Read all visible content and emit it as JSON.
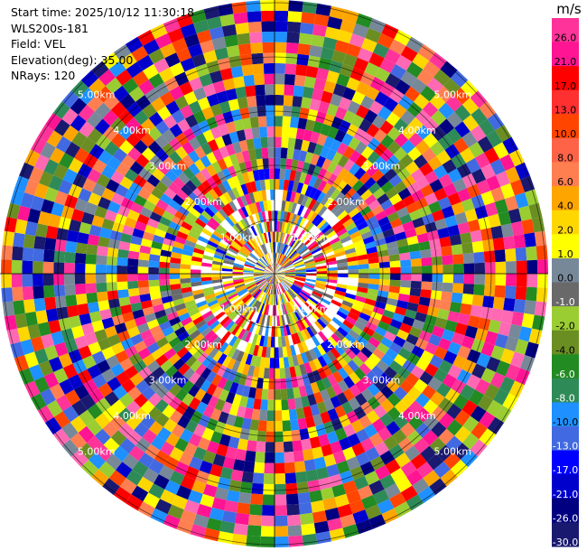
{
  "header": {
    "start_time": "Start time: 2025/10/12 11:30:18",
    "instrument": "WLS200s-181",
    "field": "Field: VEL",
    "elevation": "Elevation(deg): 35.00",
    "nrays": "NRays: 120"
  },
  "chart_data": {
    "type": "heatmap",
    "projection": "polar-ppi",
    "rays": 120,
    "range_labels": [
      "1.00km",
      "2.00km",
      "3.00km",
      "4.00km",
      "5.00km"
    ],
    "colorbar": {
      "unit": "m/s",
      "ticks": [
        "26.0",
        "21.0",
        "17.0",
        "13.0",
        "10.0",
        "8.0",
        "6.0",
        "4.0",
        "2.0",
        "1.0",
        "0.0",
        "-1.0",
        "-2.0",
        "-4.0",
        "-6.0",
        "-8.0",
        "-10.0",
        "-13.0",
        "-17.0",
        "-21.0",
        "-26.0",
        "-30.0"
      ],
      "colors": [
        "#ff3399",
        "#ff1493",
        "#ff0000",
        "#ff3030",
        "#ff4500",
        "#ff6347",
        "#ff7f50",
        "#ffa500",
        "#ffd700",
        "#ffff00",
        "#778899",
        "#696969",
        "#9acd32",
        "#6b8e23",
        "#228b22",
        "#2e8b57",
        "#1e90ff",
        "#4169e1",
        "#0000ff",
        "#0000cd",
        "#000080",
        "#191970"
      ]
    }
  }
}
